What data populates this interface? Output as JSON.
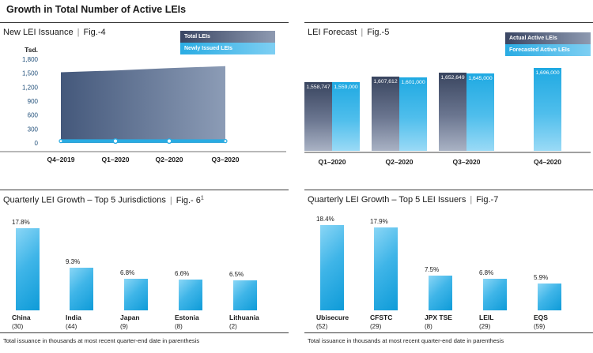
{
  "page_title": "Growth in Total Number of Active LEIs",
  "divider": "|",
  "colors": {
    "cyan": "#29ABE2",
    "cyan_light": "#8AD6F6",
    "cyan_deep": "#0E9BD8",
    "navy": "#39455F",
    "navy_light": "#A9B2C4",
    "area_gradient_start": "#44587B",
    "area_gradient_end": "#8C9CB6",
    "tick_label_blue": "#1F4E79",
    "axis_gray": "#A0A0A0",
    "rule_dark": "#3C3C3C",
    "text_dark": "#1A1A1A"
  },
  "chart_data": [
    {
      "id": "fig4",
      "type": "area",
      "title": "New LEI Issuance",
      "fig": "Fig.-4",
      "ylabel": "Tsd.",
      "x": [
        "Q4–2019",
        "Q1–2020",
        "Q2–2020",
        "Q3–2020"
      ],
      "series": [
        {
          "name": "Total LEIs",
          "style": "dark-area",
          "values": [
            1520,
            1559,
            1608,
            1653
          ],
          "estimated": true
        },
        {
          "name": "Newly Issued LEIs",
          "style": "cyan-line",
          "values": [
            40,
            40,
            40,
            40
          ],
          "estimated": true
        }
      ],
      "ylim": [
        0,
        1800
      ],
      "yticks": [
        "1,800",
        "1,500",
        "1,200",
        "900",
        "600",
        "300",
        "0"
      ],
      "legend_position": "top-right",
      "grid": false
    },
    {
      "id": "fig5",
      "type": "bar",
      "title": "LEI Forecast",
      "fig": "Fig.-5",
      "x": [
        "Q1–2020",
        "Q2–2020",
        "Q3–2020",
        "Q4–2020"
      ],
      "series": [
        {
          "name": "Actual Active LEIs",
          "style": "navy-gradient",
          "values": [
            1558747,
            1607612,
            1652649,
            null
          ],
          "labels": [
            "1,558,747",
            "1,607,612",
            "1,652,649",
            null
          ]
        },
        {
          "name": "Forecasted Active LEIs",
          "style": "cyan-gradient",
          "values": [
            1559000,
            1601000,
            1645000,
            1696000
          ],
          "labels": [
            "1,559,000",
            "1,601,000",
            "1,645,000",
            "1,696,000"
          ]
        }
      ],
      "ylim": [
        900000,
        1800000
      ],
      "value_labels": "inside-top",
      "legend_position": "top-right",
      "grid": false
    },
    {
      "id": "fig6",
      "type": "bar",
      "title": "Quarterly LEI Growth – Top 5 Jurisdictions",
      "fig": "Fig.- 6",
      "fig_sup": "1",
      "categories": [
        "China",
        "India",
        "Japan",
        "Estonia",
        "Lithuania"
      ],
      "category_counts": [
        "(30)",
        "(44)",
        "(9)",
        "(8)",
        "(2)"
      ],
      "values": [
        17.8,
        9.3,
        6.8,
        6.6,
        6.5
      ],
      "value_labels": [
        "17.8%",
        "9.3%",
        "6.8%",
        "6.6%",
        "6.5%"
      ],
      "ylim": [
        0,
        20
      ],
      "footnote": "Total issuance in thousands at most recent quarter-end date in parenthesis",
      "grid": false
    },
    {
      "id": "fig7",
      "type": "bar",
      "title": "Quarterly LEI Growth – Top 5 LEI Issuers",
      "fig": "Fig.-7",
      "categories": [
        "Ubisecure",
        "CFSTC",
        "JPX TSE",
        "LEIL",
        "EQS"
      ],
      "category_counts": [
        "(52)",
        "(29)",
        "(8)",
        "(29)",
        "(59)"
      ],
      "values": [
        18.4,
        17.9,
        7.5,
        6.8,
        5.9
      ],
      "value_labels": [
        "18.4%",
        "17.9%",
        "7.5%",
        "6.8%",
        "5.9%"
      ],
      "ylim": [
        0,
        20
      ],
      "footnote": "Total issuance in thousands at most recent quarter-end date in parenthesis",
      "grid": false
    }
  ]
}
